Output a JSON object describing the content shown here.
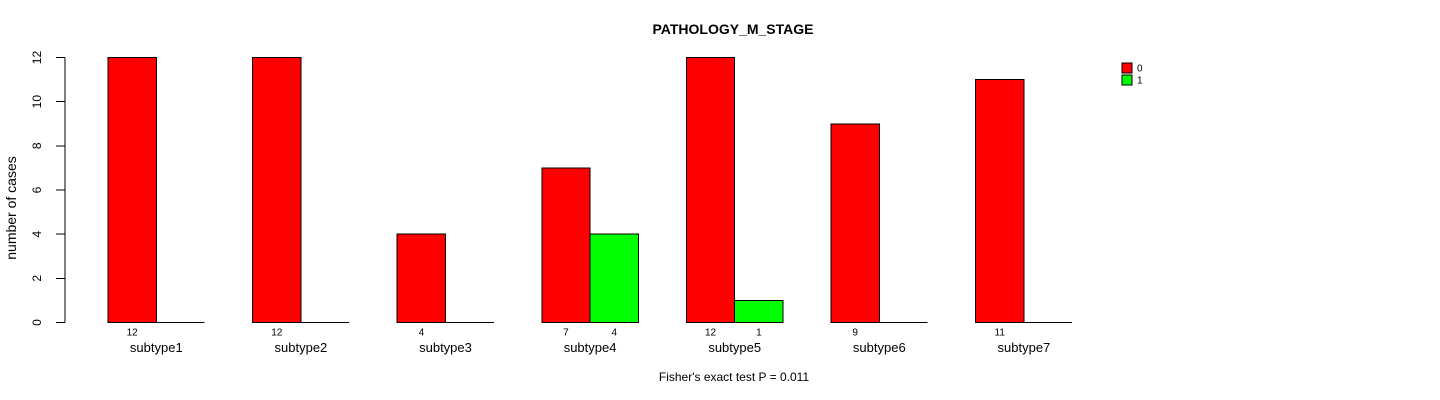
{
  "chart_data": {
    "type": "bar",
    "title": "PATHOLOGY_M_STAGE",
    "ylabel": "number of cases",
    "footnote": "Fisher's exact test P = 0.011",
    "categories": [
      "subtype1",
      "subtype2",
      "subtype3",
      "subtype4",
      "subtype5",
      "subtype6",
      "subtype7"
    ],
    "series": [
      {
        "name": "0",
        "color": "#FF0000",
        "values": [
          12,
          12,
          4,
          7,
          12,
          9,
          11
        ]
      },
      {
        "name": "1",
        "color": "#00FF00",
        "values": [
          0,
          0,
          0,
          4,
          1,
          0,
          0
        ]
      }
    ],
    "bar_value_labels_rule": "value shown under each bar when value > 0",
    "ylim": [
      0,
      12
    ],
    "yticks": [
      0,
      2,
      4,
      6,
      8,
      10,
      12
    ],
    "grid": false,
    "legend_position": "top-right",
    "background_color": "#FFFFFF",
    "axis_color": "#000000"
  }
}
